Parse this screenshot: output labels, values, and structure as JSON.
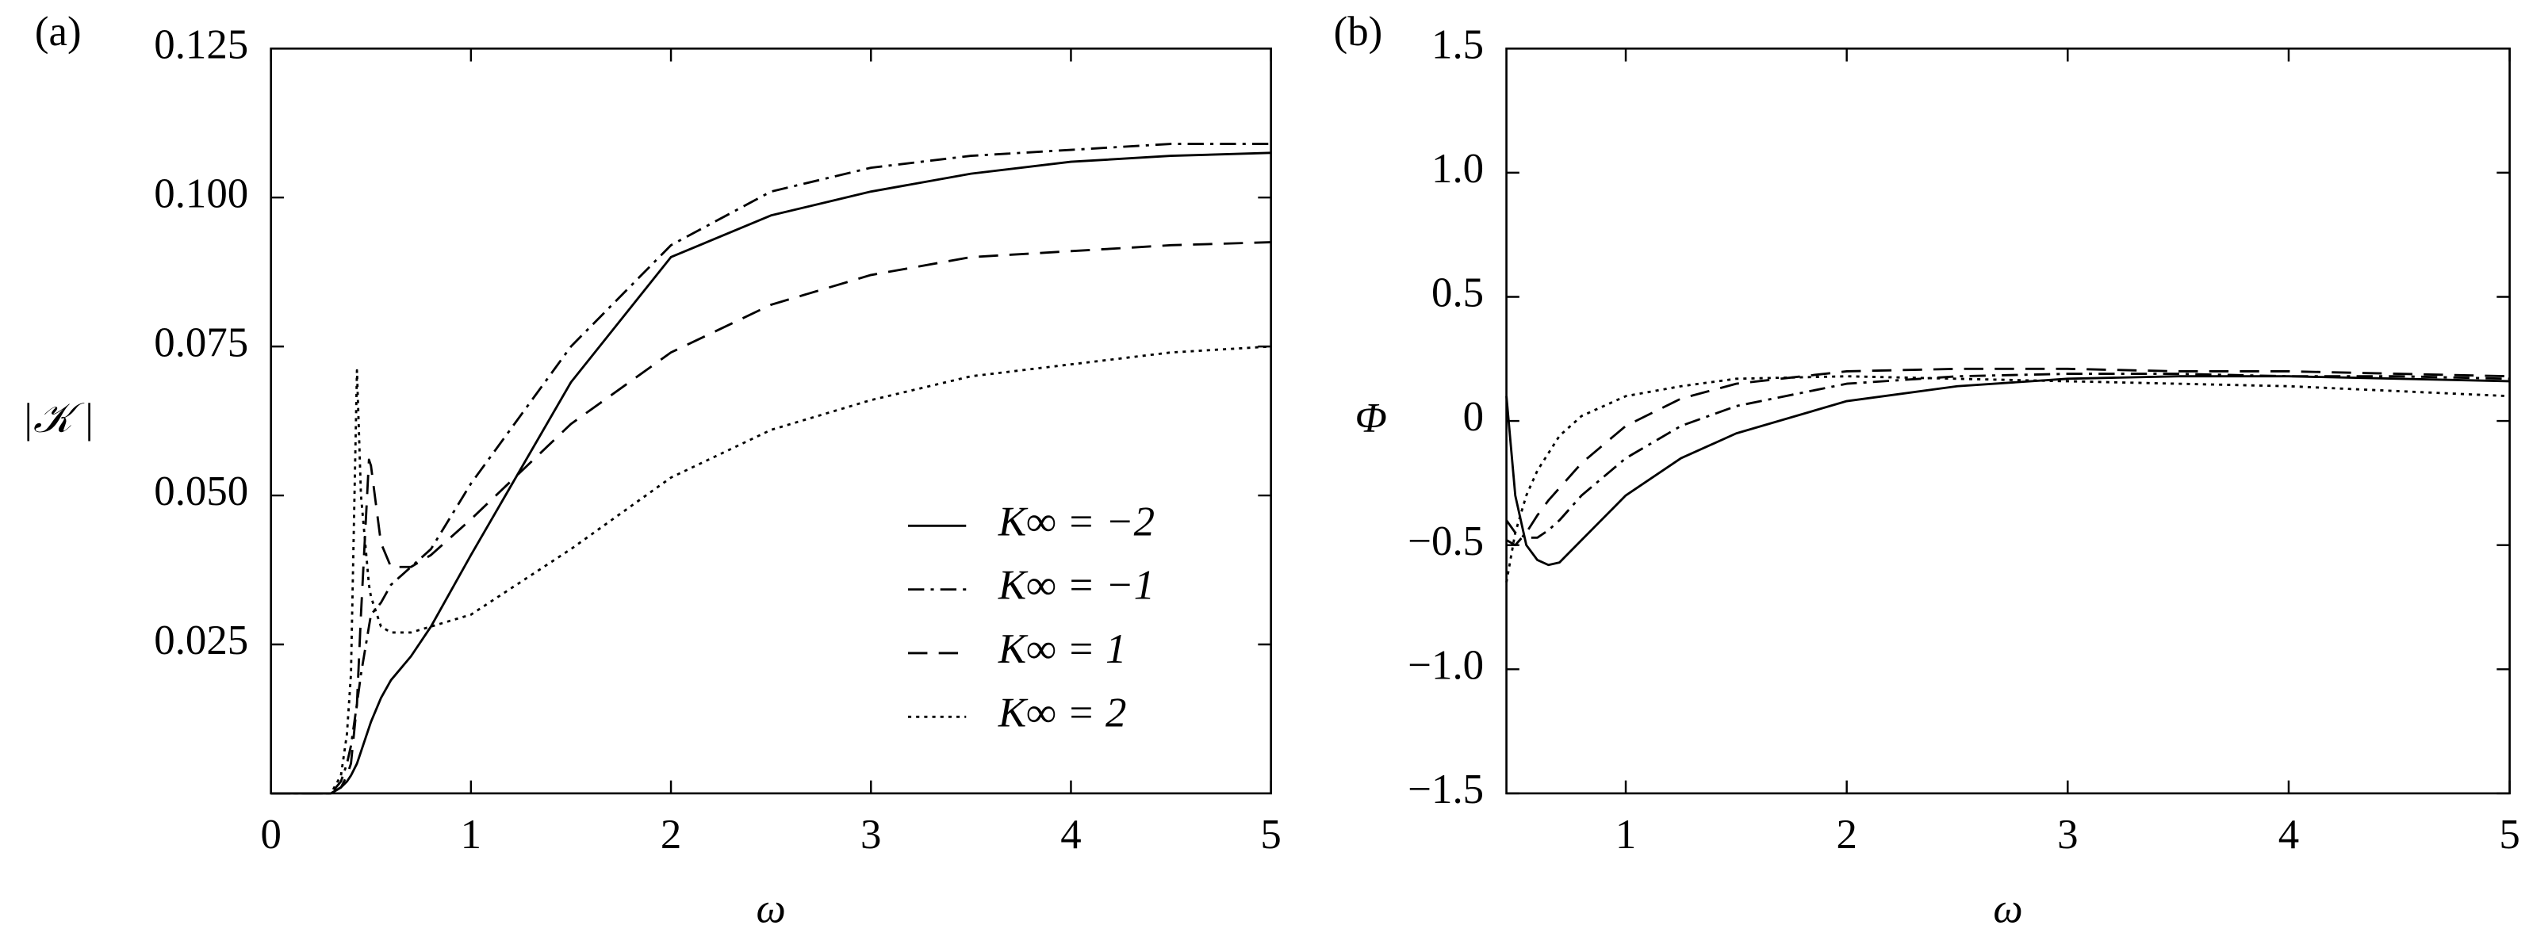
{
  "chart_data": [
    {
      "type": "line",
      "panel_label": "(a)",
      "y_label": "|𝒦 |",
      "x_label": "ω",
      "xlim": [
        0,
        5
      ],
      "ylim": [
        0,
        0.125
      ],
      "xticks": [
        0,
        1,
        2,
        3,
        4,
        5
      ],
      "yticks": [
        {
          "value": 0.025,
          "label": "0.025"
        },
        {
          "value": 0.05,
          "label": "0.050"
        },
        {
          "value": 0.075,
          "label": "0.075"
        },
        {
          "value": 0.1,
          "label": "0.100"
        },
        {
          "value": 0.125,
          "label": "0.125"
        }
      ],
      "legend": "lower right",
      "x": [
        0,
        0.3,
        0.35,
        0.38,
        0.4,
        0.43,
        0.45,
        0.49,
        0.5,
        0.55,
        0.6,
        0.7,
        0.8,
        1,
        1.5,
        2,
        2.5,
        3,
        3.5,
        4,
        4.5,
        5
      ],
      "series": [
        {
          "name": "K∞ = −2",
          "color": "#000000",
          "linestyle": "solid",
          "values": [
            0,
            0,
            0.001,
            0.002,
            0.003,
            0.005,
            0.007,
            0.011,
            0.012,
            0.016,
            0.019,
            0.023,
            0.028,
            0.04,
            0.069,
            0.09,
            0.097,
            0.101,
            0.104,
            0.106,
            0.107,
            0.1075
          ]
        },
        {
          "name": "K∞ = −1",
          "color": "#000000",
          "linestyle": "dashdot",
          "values": [
            0,
            0,
            0.002,
            0.005,
            0.008,
            0.015,
            0.02,
            0.028,
            0.03,
            0.032,
            0.035,
            0.038,
            0.041,
            0.052,
            0.075,
            0.092,
            0.101,
            0.105,
            0.107,
            0.108,
            0.109,
            0.109
          ]
        },
        {
          "name": "K∞ = 1",
          "color": "#000000",
          "linestyle": "dashed",
          "values": [
            0,
            0,
            0.001,
            0.003,
            0.005,
            0.015,
            0.03,
            0.056,
            0.055,
            0.042,
            0.038,
            0.038,
            0.04,
            0.046,
            0.062,
            0.074,
            0.082,
            0.087,
            0.09,
            0.091,
            0.092,
            0.0925
          ]
        },
        {
          "name": "K∞ = 2",
          "color": "#000000",
          "linestyle": "dotted",
          "values": [
            0,
            0,
            0.003,
            0.01,
            0.02,
            0.071,
            0.05,
            0.035,
            0.033,
            0.028,
            0.027,
            0.027,
            0.028,
            0.03,
            0.041,
            0.053,
            0.061,
            0.066,
            0.07,
            0.072,
            0.074,
            0.075
          ]
        }
      ]
    },
    {
      "type": "line",
      "panel_label": "(b)",
      "y_label": "Φ",
      "x_label": "ω",
      "xlim": [
        0.46,
        5
      ],
      "ylim": [
        -1.5,
        1.5
      ],
      "xticks": [
        1,
        2,
        3,
        4,
        5
      ],
      "yticks": [
        {
          "value": -1.5,
          "label": "−1.5"
        },
        {
          "value": -1,
          "label": "−1.0"
        },
        {
          "value": -0.5,
          "label": "−0.5"
        },
        0,
        0.5,
        {
          "value": 1,
          "label": "1.0"
        },
        1.5
      ],
      "x": [
        0.46,
        0.5,
        0.55,
        0.6,
        0.65,
        0.7,
        0.8,
        1,
        1.25,
        1.5,
        2,
        2.5,
        3,
        3.5,
        4,
        4.5,
        5
      ],
      "series": [
        {
          "color": "#000000",
          "linestyle": "solid",
          "values": [
            0.1,
            -0.3,
            -0.5,
            -0.56,
            -0.58,
            -0.57,
            -0.48,
            -0.3,
            -0.15,
            -0.05,
            0.08,
            0.14,
            0.17,
            0.18,
            0.18,
            0.17,
            0.16
          ]
        },
        {
          "color": "#000000",
          "linestyle": "dashdot",
          "values": [
            -0.4,
            -0.45,
            -0.47,
            -0.47,
            -0.44,
            -0.4,
            -0.3,
            -0.15,
            -0.02,
            0.06,
            0.15,
            0.18,
            0.19,
            0.19,
            0.18,
            0.18,
            0.17
          ]
        },
        {
          "color": "#000000",
          "linestyle": "dashed",
          "values": [
            -0.48,
            -0.5,
            -0.45,
            -0.38,
            -0.32,
            -0.27,
            -0.17,
            -0.02,
            0.09,
            0.15,
            0.2,
            0.21,
            0.21,
            0.2,
            0.2,
            0.19,
            0.18
          ]
        },
        {
          "color": "#000000",
          "linestyle": "dotted",
          "values": [
            -0.65,
            -0.45,
            -0.3,
            -0.2,
            -0.13,
            -0.06,
            0.02,
            0.1,
            0.14,
            0.17,
            0.18,
            0.17,
            0.16,
            0.15,
            0.14,
            0.12,
            0.1
          ]
        }
      ]
    }
  ]
}
